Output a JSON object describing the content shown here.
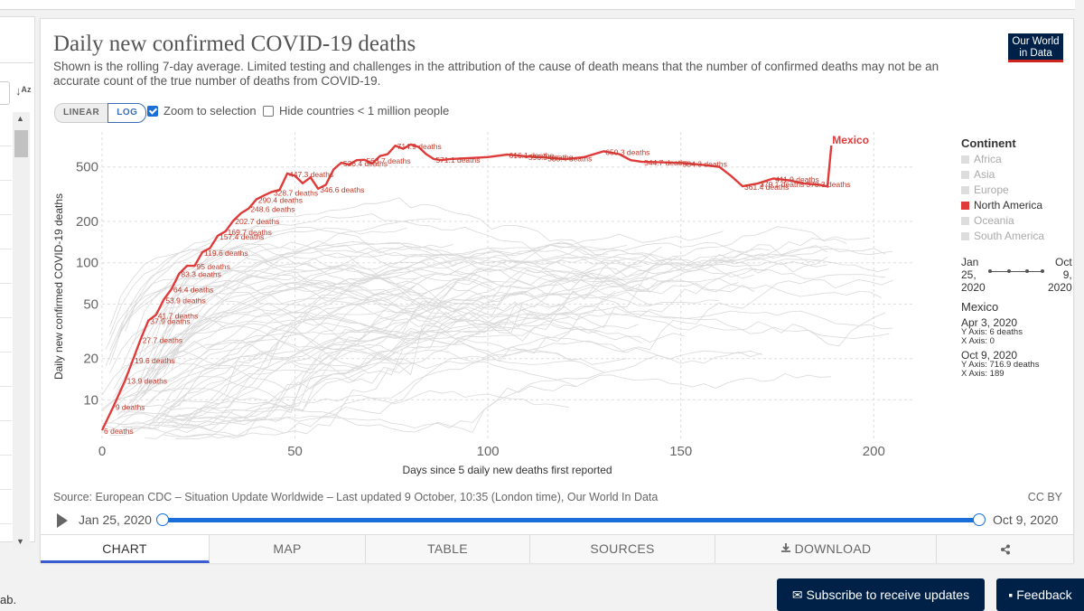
{
  "page": {
    "bottom_left_text": "ab.",
    "subscribe_label": "Subscribe to receive updates",
    "feedback_label": "Feedback"
  },
  "chart": {
    "title": "Daily new confirmed COVID-19 deaths",
    "subtitle": "Shown is the rolling 7-day average. Limited testing and challenges in the attribution of the cause of death means that the number of confirmed deaths may not be an accurate count of the true number of deaths from COVID-19.",
    "logo_line1": "Our World",
    "logo_line2": "in Data",
    "scale_linear": "LINEAR",
    "scale_log": "LOG",
    "zoom_label": "Zoom to selection",
    "zoom_checked": true,
    "hide_label": "Hide countries < 1 million people",
    "hide_checked": false,
    "source": "Source: European CDC – Situation Update Worldwide – Last updated 9 October, 10:35 (London time), Our World In Data",
    "license": "CC BY",
    "timeline_start": "Jan 25, 2020",
    "timeline_end": "Oct 9, 2020"
  },
  "legend": {
    "title": "Continent",
    "items": [
      {
        "label": "Africa",
        "color": "#dddddd",
        "active": false
      },
      {
        "label": "Asia",
        "color": "#dddddd",
        "active": false
      },
      {
        "label": "Europe",
        "color": "#dddddd",
        "active": false
      },
      {
        "label": "North America",
        "color": "#e03b3b",
        "active": true
      },
      {
        "label": "Oceania",
        "color": "#dddddd",
        "active": false
      },
      {
        "label": "South America",
        "color": "#dddddd",
        "active": false
      }
    ]
  },
  "timeline_mini": {
    "left_1": "Jan",
    "left_2": "25,",
    "left_3": "2020",
    "right_1": "Oct",
    "right_2": "9,",
    "right_3": "2020"
  },
  "hover": {
    "entity": "Mexico",
    "start_date": "Apr 3, 2020",
    "start_y": "Y Axis: 6 deaths",
    "start_x": "X Axis: 0",
    "end_date": "Oct 9, 2020",
    "end_y": "Y Axis: 716.9 deaths",
    "end_x": "X Axis: 189"
  },
  "tabs": [
    {
      "label": "CHART",
      "icon": "",
      "active": true
    },
    {
      "label": "MAP",
      "icon": "",
      "active": false
    },
    {
      "label": "TABLE",
      "icon": "",
      "active": false
    },
    {
      "label": "SOURCES",
      "icon": "",
      "active": false
    },
    {
      "label": "DOWNLOAD",
      "icon": "download-icon",
      "active": false
    },
    {
      "label": "",
      "icon": "share-icon",
      "active": false
    }
  ],
  "chart_data": {
    "type": "line",
    "title": "Daily new confirmed COVID-19 deaths",
    "xlabel": "Days since 5 daily new deaths first reported",
    "ylabel": "Daily new confirmed COVID-19 deaths",
    "xlim": [
      0,
      210
    ],
    "ylim": [
      5,
      900
    ],
    "yscale": "log",
    "xticks": [
      0,
      50,
      100,
      150,
      200
    ],
    "yticks": [
      10,
      20,
      50,
      100,
      200,
      500
    ],
    "ytick_labels": [
      "10",
      "20",
      "50",
      "100",
      "200",
      "500"
    ],
    "grid": true,
    "highlight_color": "#e03b3b",
    "series": [
      {
        "name": "Mexico",
        "x": [
          0,
          3,
          6,
          8,
          10,
          12,
          14,
          16,
          18,
          20,
          22,
          24,
          26,
          28,
          30,
          32,
          34,
          36,
          38,
          40,
          42,
          44,
          46,
          48,
          50,
          52,
          54,
          56,
          58,
          60,
          62,
          64,
          66,
          68,
          70,
          72,
          74,
          76,
          78,
          80,
          82,
          84,
          86,
          88,
          90,
          95,
          100,
          105,
          110,
          115,
          120,
          125,
          130,
          134,
          137,
          140,
          145,
          150,
          155,
          160,
          163,
          166,
          170,
          174,
          178,
          182,
          186,
          188,
          189
        ],
        "y": [
          6,
          9,
          13.9,
          19.6,
          27.7,
          37.9,
          41.7,
          53.9,
          64.4,
          83.3,
          95,
          95,
          119.6,
          128,
          157.4,
          169.7,
          202.7,
          230,
          248.6,
          290.4,
          310,
          328.7,
          340,
          447.3,
          430,
          380,
          420,
          346.6,
          370,
          480,
          536.4,
          520,
          560,
          563.7,
          530,
          600,
          620,
          714.9,
          680,
          730,
          700,
          620,
          571.1,
          560,
          570,
          580,
          590,
          616.1,
          596.9,
          585.4,
          570,
          590,
          650.3,
          620,
          560,
          544.7,
          540,
          534.3,
          520,
          500,
          430,
          361.4,
          379.1,
          411.9,
          400,
          378.3,
          370,
          360,
          716.9
        ]
      }
    ],
    "data_labels": [
      {
        "x": 0,
        "y": 6,
        "text": "6 deaths"
      },
      {
        "x": 3,
        "y": 9,
        "text": "9 deaths"
      },
      {
        "x": 6,
        "y": 13.9,
        "text": "13.9 deaths"
      },
      {
        "x": 8,
        "y": 19.6,
        "text": "19.6 deaths"
      },
      {
        "x": 10,
        "y": 27.7,
        "text": "27.7 deaths"
      },
      {
        "x": 12,
        "y": 37.9,
        "text": "37.9 deaths"
      },
      {
        "x": 14,
        "y": 41.7,
        "text": "41.7 deaths"
      },
      {
        "x": 16,
        "y": 53.9,
        "text": "53.9 deaths"
      },
      {
        "x": 18,
        "y": 64.4,
        "text": "64.4 deaths"
      },
      {
        "x": 20,
        "y": 83.3,
        "text": "83.3 deaths"
      },
      {
        "x": 24,
        "y": 95,
        "text": "95 deaths"
      },
      {
        "x": 26,
        "y": 119.6,
        "text": "119.6 deaths"
      },
      {
        "x": 30,
        "y": 157.4,
        "text": "157.4 deaths"
      },
      {
        "x": 32,
        "y": 169.7,
        "text": "169.7 deaths"
      },
      {
        "x": 34,
        "y": 202.7,
        "text": "202.7 deaths"
      },
      {
        "x": 38,
        "y": 248.6,
        "text": "248.6 deaths"
      },
      {
        "x": 40,
        "y": 290.4,
        "text": "290.4 deaths"
      },
      {
        "x": 44,
        "y": 328.7,
        "text": "328.7 deaths"
      },
      {
        "x": 48,
        "y": 447.3,
        "text": "447.3 deaths"
      },
      {
        "x": 56,
        "y": 346.6,
        "text": "346.6 deaths"
      },
      {
        "x": 62,
        "y": 536.4,
        "text": "536.4 deaths"
      },
      {
        "x": 68,
        "y": 563.7,
        "text": "563.7 deaths"
      },
      {
        "x": 76,
        "y": 714.9,
        "text": "714.9 deaths"
      },
      {
        "x": 86,
        "y": 571.1,
        "text": "571.1 deaths"
      },
      {
        "x": 105,
        "y": 616.1,
        "text": "616.1 deaths"
      },
      {
        "x": 110,
        "y": 596.9,
        "text": "596.9 deaths"
      },
      {
        "x": 115,
        "y": 585.4,
        "text": "585.4 deaths"
      },
      {
        "x": 130,
        "y": 650.3,
        "text": "650.3 deaths"
      },
      {
        "x": 140,
        "y": 544.7,
        "text": "544.7 deaths"
      },
      {
        "x": 150,
        "y": 534.3,
        "text": "534.3 deaths"
      },
      {
        "x": 166,
        "y": 361.4,
        "text": "361.4 deaths"
      },
      {
        "x": 170,
        "y": 379.1,
        "text": "379.1 deaths"
      },
      {
        "x": 174,
        "y": 411.9,
        "text": "411.9 deaths"
      },
      {
        "x": 182,
        "y": 378.3,
        "text": "378.3 deaths"
      }
    ],
    "background_series_note": "Grey lines are other countries (not individually labeled)"
  }
}
